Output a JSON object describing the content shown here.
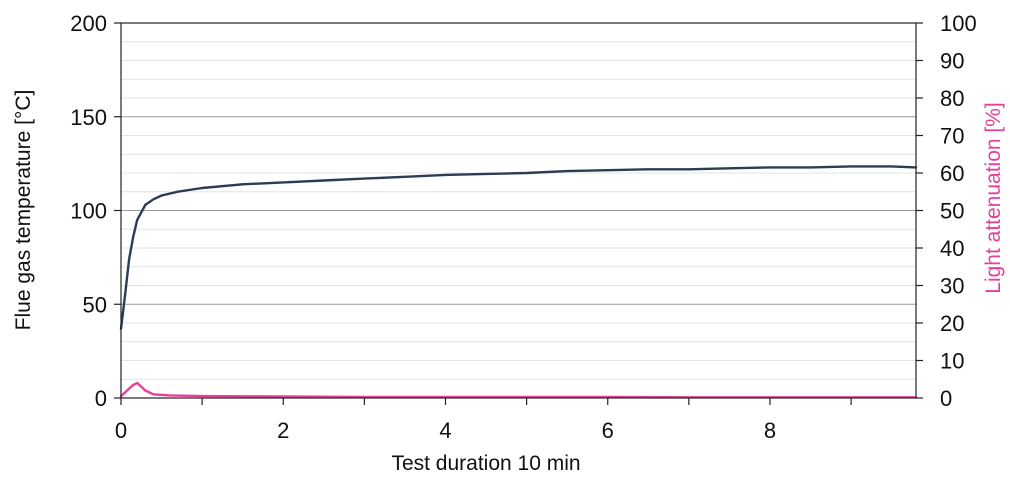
{
  "colors": {
    "background": "#ffffff",
    "plot_border": "#222222",
    "major_grid": "#9a9a9a",
    "minor_grid": "#e3e3e3",
    "temperature_line": "#2b3d55",
    "light_attenuation_line": "#e8409a"
  },
  "chart_data": {
    "type": "line",
    "title": "",
    "xlabel": "Test duration 10 min",
    "ylabel": "Flue gas temperature [°C]",
    "y2label": "Light attenuation [%]",
    "xlim": [
      0,
      9.8
    ],
    "ylim": [
      0,
      200
    ],
    "y2lim": [
      0,
      100
    ],
    "x_ticks": [
      0,
      2,
      4,
      6,
      8
    ],
    "x_tick_labels": [
      "0",
      "2",
      "4",
      "6",
      "8"
    ],
    "y_ticks": [
      0,
      50,
      100,
      150,
      200
    ],
    "y_tick_labels": [
      "0",
      "50",
      "100",
      "150",
      "200"
    ],
    "y2_ticks": [
      0,
      10,
      20,
      30,
      40,
      50,
      60,
      70,
      80,
      90,
      100
    ],
    "y2_tick_labels": [
      "0",
      "10",
      "20",
      "30",
      "40",
      "50",
      "60",
      "70",
      "80",
      "90",
      "100"
    ],
    "grid": true,
    "legend": "none",
    "series": [
      {
        "axis": "left",
        "x": [
          0.0,
          0.05,
          0.1,
          0.15,
          0.2,
          0.3,
          0.4,
          0.5,
          0.7,
          1.0,
          1.5,
          2.0,
          2.5,
          3.0,
          3.5,
          4.0,
          4.5,
          5.0,
          5.5,
          6.0,
          6.5,
          7.0,
          7.5,
          8.0,
          8.5,
          9.0,
          9.5,
          9.8
        ],
        "values": [
          37,
          55,
          74,
          86,
          95,
          103,
          106,
          108,
          110,
          112,
          114,
          115,
          116,
          117,
          118,
          119,
          119.5,
          120,
          121,
          121.5,
          122,
          122,
          122.5,
          123,
          123,
          123.5,
          123.5,
          123
        ]
      },
      {
        "axis": "right",
        "x": [
          0.0,
          0.05,
          0.1,
          0.15,
          0.2,
          0.25,
          0.3,
          0.4,
          0.6,
          1.0,
          2.0,
          3.0,
          4.0,
          5.0,
          6.0,
          7.0,
          8.0,
          9.0,
          9.8
        ],
        "values": [
          0.5,
          1.5,
          2.5,
          3.5,
          4.0,
          3.0,
          2.0,
          1.0,
          0.7,
          0.5,
          0.4,
          0.3,
          0.3,
          0.3,
          0.3,
          0.2,
          0.2,
          0.2,
          0.2
        ]
      }
    ]
  }
}
